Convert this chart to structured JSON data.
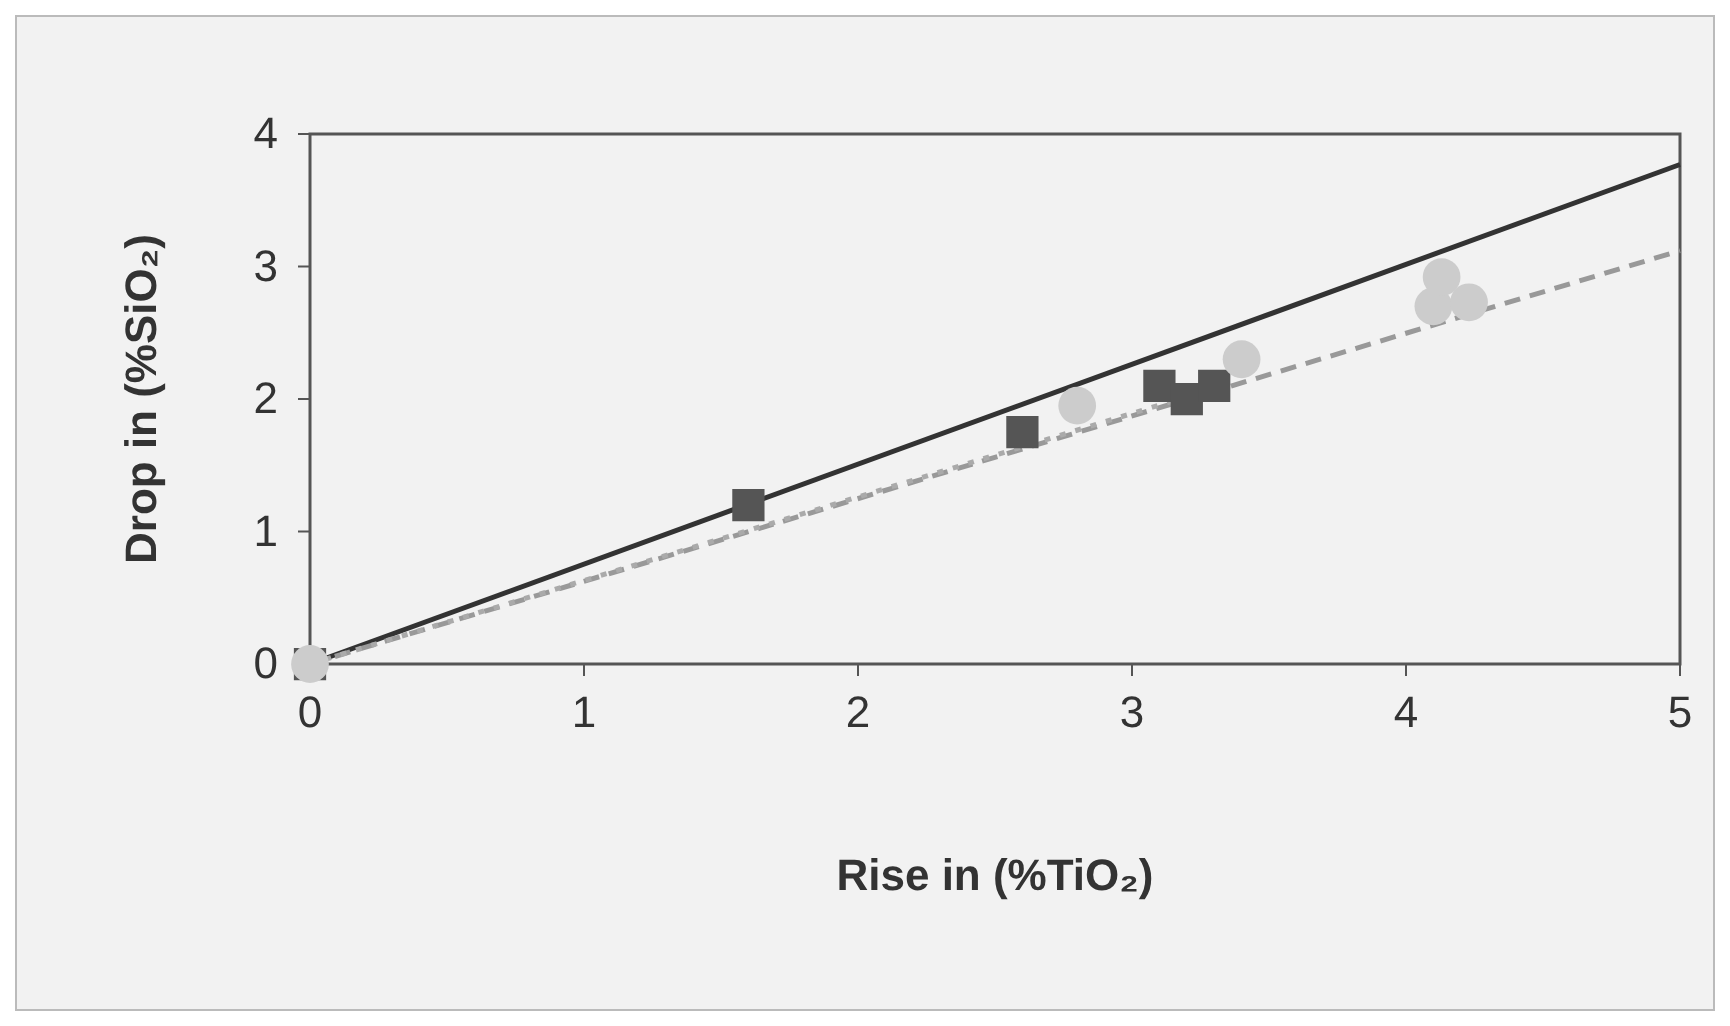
{
  "chart_data": {
    "type": "scatter",
    "xlabel": "Rise in (%TiO₂)",
    "ylabel": "Drop in (%SiO₂)",
    "xlim": [
      0,
      5
    ],
    "ylim": [
      0,
      4
    ],
    "xticks": [
      0,
      1,
      2,
      3,
      4,
      5
    ],
    "yticks": [
      0,
      1,
      2,
      3,
      4
    ],
    "grid": false,
    "series": [
      {
        "type": "line",
        "color": "#333333",
        "line_style": "solid",
        "marker": "none",
        "x": [
          0,
          5
        ],
        "values": [
          0,
          3.77
        ]
      },
      {
        "type": "line",
        "color": "#999999",
        "line_style": "dashed",
        "marker": "none",
        "x": [
          0,
          5
        ],
        "values": [
          0,
          3.12
        ]
      },
      {
        "type": "line",
        "color": "#aaaaaa",
        "line_style": "dotted",
        "marker": "none",
        "x": [
          0,
          3.3
        ],
        "values": [
          0,
          2.08
        ]
      },
      {
        "color": "#555555",
        "marker": "square",
        "x": [
          0,
          1.6,
          2.6,
          3.1,
          3.2,
          3.3
        ],
        "values": [
          0,
          1.2,
          1.75,
          2.1,
          2.0,
          2.1
        ]
      },
      {
        "color": "#cccccc",
        "marker": "circle",
        "x": [
          0,
          2.8,
          3.4,
          4.1,
          4.13,
          4.23
        ],
        "values": [
          0,
          1.95,
          2.3,
          2.7,
          2.92,
          2.73
        ]
      }
    ]
  }
}
